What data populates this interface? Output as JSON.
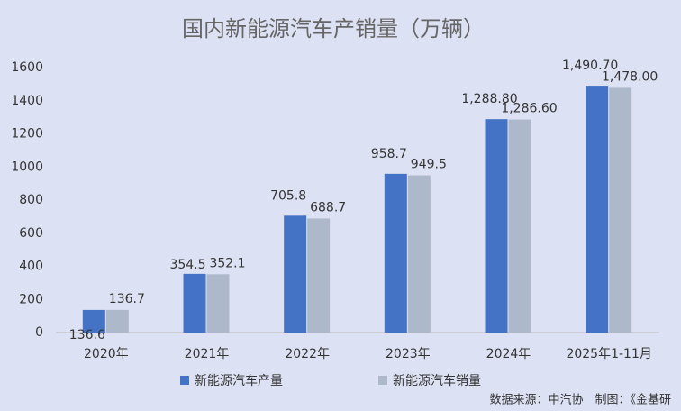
{
  "chart_data": {
    "type": "bar",
    "title": "国内新能源汽车产销量（万辆）",
    "categories": [
      "2020年",
      "2021年",
      "2022年",
      "2023年",
      "2024年",
      "2025年1-11月"
    ],
    "series": [
      {
        "name": "新能源汽车产量",
        "color": "#4472c4",
        "values": [
          136.6,
          354.5,
          705.8,
          958.7,
          1288.8,
          1490.7
        ],
        "value_labels": [
          "136.6",
          "354.5",
          "705.8",
          "958.7",
          "1,288.80",
          "1,490.70"
        ]
      },
      {
        "name": "新能源汽车销量",
        "color": "#adb9ca",
        "values": [
          136.7,
          352.1,
          688.7,
          949.5,
          1286.6,
          1478.0
        ],
        "value_labels": [
          "136.7",
          "352.1",
          "688.7",
          "949.5",
          "1,286.60",
          "1,478.00"
        ]
      }
    ],
    "ylim": [
      0,
      1600
    ],
    "yticks": [
      0,
      200,
      400,
      600,
      800,
      1000,
      1200,
      1400,
      1600
    ],
    "grid": false,
    "legend": "bottom",
    "annotation": "数据来源：中汽协　制图：《金基研"
  }
}
